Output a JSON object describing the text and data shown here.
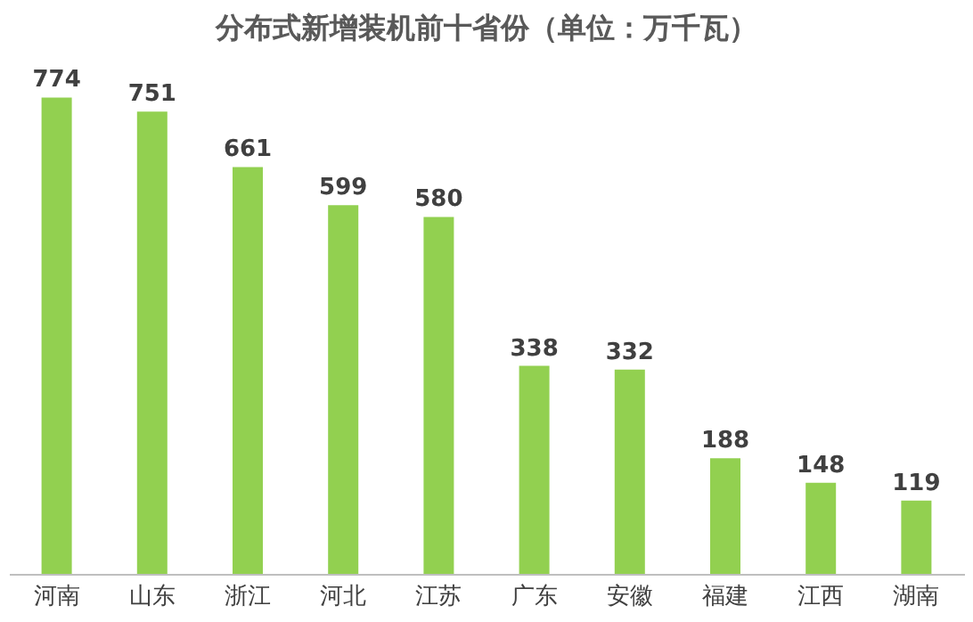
{
  "chart_data": {
    "type": "bar",
    "title": "分布式新增装机前十省份（单位：万千瓦）",
    "categories": [
      "河南",
      "山东",
      "浙江",
      "河北",
      "江苏",
      "广东",
      "安徽",
      "福建",
      "江西",
      "湖南"
    ],
    "values": [
      774,
      751,
      661,
      599,
      580,
      338,
      332,
      188,
      148,
      119
    ],
    "color": "#92d050",
    "data_labels": true
  }
}
